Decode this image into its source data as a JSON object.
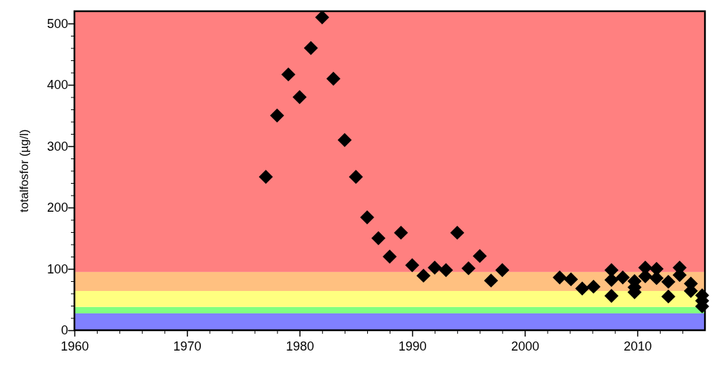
{
  "chart_data": {
    "type": "scatter",
    "ylabel": "totalfosfor (µg/l)",
    "marker": "diamond",
    "grid": false,
    "xlim": [
      1960,
      2016
    ],
    "ylim": [
      0,
      520
    ],
    "xticks": [
      1960,
      {
        "value": 1962,
        "label": null
      },
      {
        "value": 1964,
        "label": null
      },
      {
        "value": 1966,
        "label": null
      },
      {
        "value": 1968,
        "label": null
      },
      1970,
      {
        "value": 1972,
        "label": null
      },
      {
        "value": 1974,
        "label": null
      },
      {
        "value": 1976,
        "label": null
      },
      {
        "value": 1978,
        "label": null
      },
      1980,
      {
        "value": 1982,
        "label": null
      },
      {
        "value": 1984,
        "label": null
      },
      {
        "value": 1986,
        "label": null
      },
      {
        "value": 1988,
        "label": null
      },
      1990,
      {
        "value": 1992,
        "label": null
      },
      {
        "value": 1994,
        "label": null
      },
      {
        "value": 1996,
        "label": null
      },
      {
        "value": 1998,
        "label": null
      },
      2000,
      {
        "value": 2002,
        "label": null
      },
      {
        "value": 2004,
        "label": null
      },
      {
        "value": 2006,
        "label": null
      },
      {
        "value": 2008,
        "label": null
      },
      2010,
      {
        "value": 2012,
        "label": null
      },
      {
        "value": 2014,
        "label": null
      }
    ],
    "yticks": [
      0,
      {
        "value": 20,
        "label": null
      },
      {
        "value": 40,
        "label": null
      },
      {
        "value": 60,
        "label": null
      },
      {
        "value": 80,
        "label": null
      },
      100,
      {
        "value": 120,
        "label": null
      },
      {
        "value": 140,
        "label": null
      },
      {
        "value": 160,
        "label": null
      },
      {
        "value": 180,
        "label": null
      },
      200,
      {
        "value": 220,
        "label": null
      },
      {
        "value": 240,
        "label": null
      },
      {
        "value": 260,
        "label": null
      },
      {
        "value": 280,
        "label": null
      },
      300,
      {
        "value": 320,
        "label": null
      },
      {
        "value": 340,
        "label": null
      },
      {
        "value": 360,
        "label": null
      },
      {
        "value": 380,
        "label": null
      },
      400,
      {
        "value": 420,
        "label": null
      },
      {
        "value": 440,
        "label": null
      },
      {
        "value": 460,
        "label": null
      },
      {
        "value": 480,
        "label": null
      },
      500
    ],
    "bands": [
      {
        "axis": "y",
        "from": 0,
        "to": 27.5,
        "color": "#8080ff"
      },
      {
        "axis": "y",
        "from": 27.5,
        "to": 38,
        "color": "#80ff80"
      },
      {
        "axis": "y",
        "from": 38,
        "to": 64,
        "color": "#ffff80"
      },
      {
        "axis": "y",
        "from": 64,
        "to": 95,
        "color": "#ffc080"
      },
      {
        "axis": "y",
        "from": 95,
        "to": 520,
        "color": "#ff8080"
      }
    ],
    "series": [
      {
        "color": "#000000",
        "x": [
          1977,
          1978,
          1979,
          1980,
          1981,
          1982,
          1983,
          1984,
          1985,
          1986,
          1987,
          1988,
          1989,
          1990,
          1991,
          1992,
          1993,
          1994,
          1995,
          1996,
          1997,
          1998,
          2003.1,
          2004.1,
          2005.1,
          2006.1,
          2007.7,
          2007.7,
          2007.7,
          2008.7,
          2009.75,
          2009.75,
          2009.75,
          2010.7,
          2010.7,
          2011.7,
          2011.7,
          2012.75,
          2012.75,
          2013.75,
          2013.75,
          2014.75,
          2014.75,
          2015.75,
          2015.75,
          2015.75
        ],
        "values": [
          250,
          350,
          417,
          380,
          460,
          510,
          410,
          310,
          250,
          184,
          150,
          120,
          159,
          106,
          89,
          102,
          98,
          159,
          101,
          121,
          81,
          98,
          86,
          83,
          68,
          71,
          98,
          82,
          56,
          86,
          80,
          70,
          62,
          102,
          88,
          100,
          85,
          79,
          55,
          102,
          90,
          76,
          64,
          57,
          48,
          39
        ]
      }
    ]
  }
}
